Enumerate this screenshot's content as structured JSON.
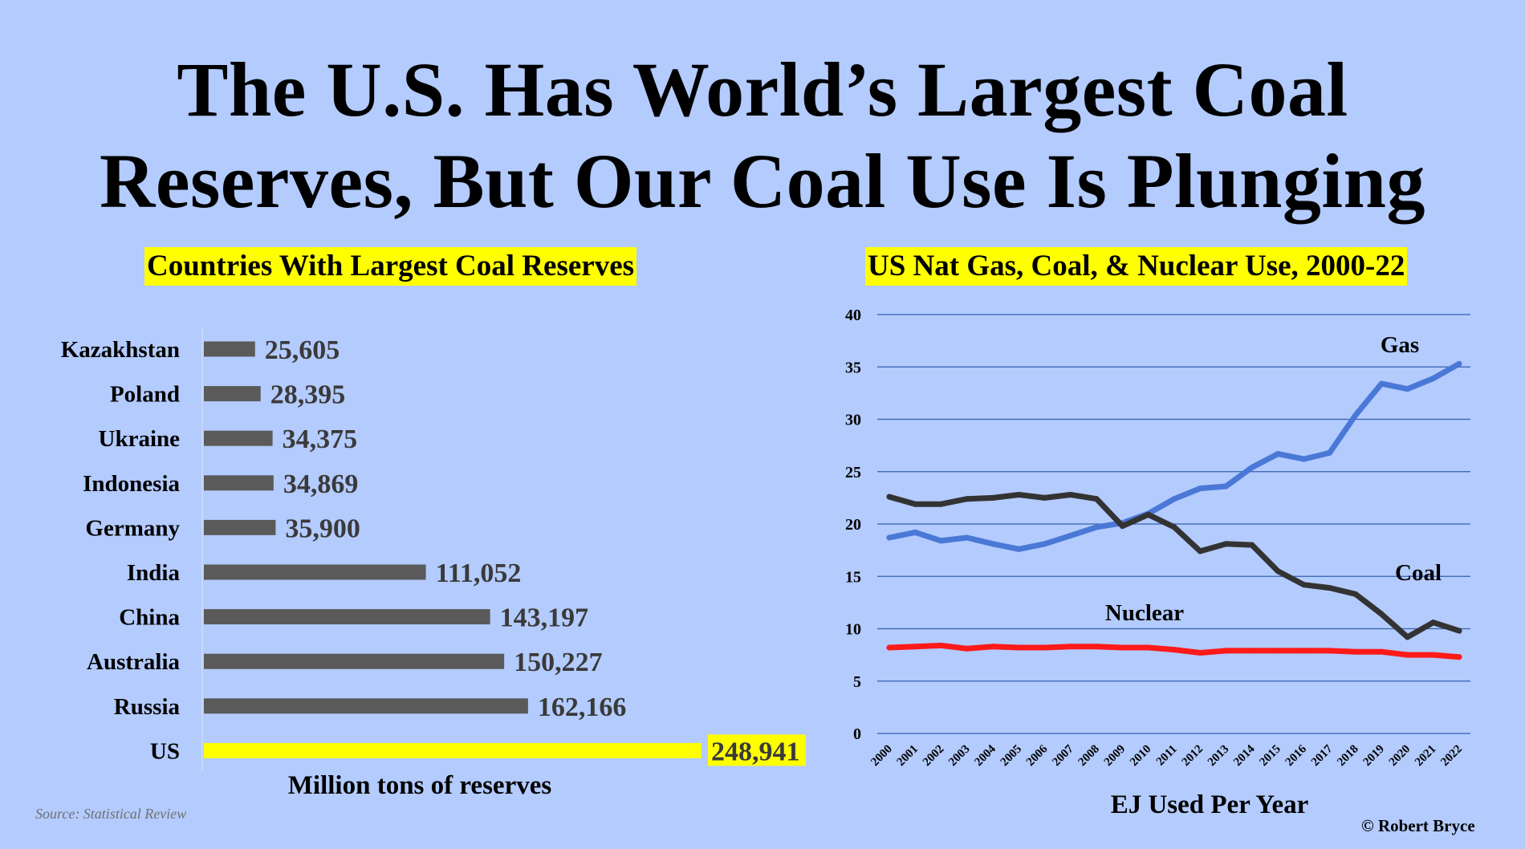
{
  "header": {
    "title_line1": "The U.S. Has World’s Largest Coal",
    "title_line2": "Reserves, But Our Coal Use Is Plunging"
  },
  "colors": {
    "background": "#b3cbfd",
    "highlight": "#ffff00",
    "bar": "#5a5a5a",
    "gas": "#4a78d6",
    "coal": "#333333",
    "nuclear": "#ff1a1a",
    "grid": "#3560b0"
  },
  "source_note": "Source: Statistical Review",
  "copyright": "© Robert Bryce",
  "chart_data": [
    {
      "type": "bar",
      "orientation": "horizontal",
      "title": "Countries With Largest  Coal Reserves",
      "xlabel": "Million tons of reserves",
      "categories": [
        "Kazakhstan",
        "Poland",
        "Ukraine",
        "Indonesia",
        "Germany",
        "India",
        "China",
        "Australia",
        "Russia",
        "US"
      ],
      "values": [
        25605,
        28395,
        34375,
        34869,
        35900,
        111052,
        143197,
        150227,
        162166,
        248941
      ],
      "value_labels": [
        "25,605",
        "28,395",
        "34,375",
        "34,869",
        "35,900",
        "111,052",
        "143,197",
        "150,227",
        "162,166",
        "248,941"
      ],
      "highlight_category": "US",
      "xlim": [
        0,
        248941
      ],
      "grid": false
    },
    {
      "type": "line",
      "title": "US Nat Gas, Coal, & Nuclear Use, 2000-22",
      "xlabel": "EJ Used Per Year",
      "x": [
        "2000",
        "2001",
        "2002",
        "2003",
        "2004",
        "2005",
        "2006",
        "2007",
        "2008",
        "2009",
        "2010",
        "2011",
        "2012",
        "2013",
        "2014",
        "2015",
        "2016",
        "2017",
        "2018",
        "2019",
        "2020",
        "2021",
        "2022"
      ],
      "series": [
        {
          "name": "Gas",
          "color": "#4a78d6",
          "values": [
            18.7,
            19.2,
            18.4,
            18.7,
            18.1,
            17.6,
            18.1,
            18.9,
            19.7,
            20.1,
            21.0,
            22.4,
            23.4,
            23.6,
            25.4,
            26.7,
            26.2,
            26.8,
            30.4,
            33.4,
            32.9,
            33.9,
            35.3
          ]
        },
        {
          "name": "Coal",
          "color": "#333333",
          "values": [
            22.6,
            21.9,
            21.9,
            22.4,
            22.5,
            22.8,
            22.5,
            22.8,
            22.4,
            19.8,
            20.9,
            19.7,
            17.4,
            18.1,
            18.0,
            15.5,
            14.2,
            13.9,
            13.3,
            11.4,
            9.2,
            10.6,
            9.8
          ]
        },
        {
          "name": "Nuclear",
          "color": "#ff1a1a",
          "values": [
            8.2,
            8.3,
            8.4,
            8.1,
            8.3,
            8.2,
            8.2,
            8.3,
            8.3,
            8.2,
            8.2,
            8.0,
            7.7,
            7.9,
            7.9,
            7.9,
            7.9,
            7.9,
            7.8,
            7.8,
            7.5,
            7.5,
            7.3
          ]
        }
      ],
      "ylim": [
        0,
        40
      ],
      "yticks": [
        "0",
        "5",
        "10",
        "15",
        "20",
        "25",
        "30",
        "35",
        "40"
      ],
      "grid": true
    }
  ]
}
